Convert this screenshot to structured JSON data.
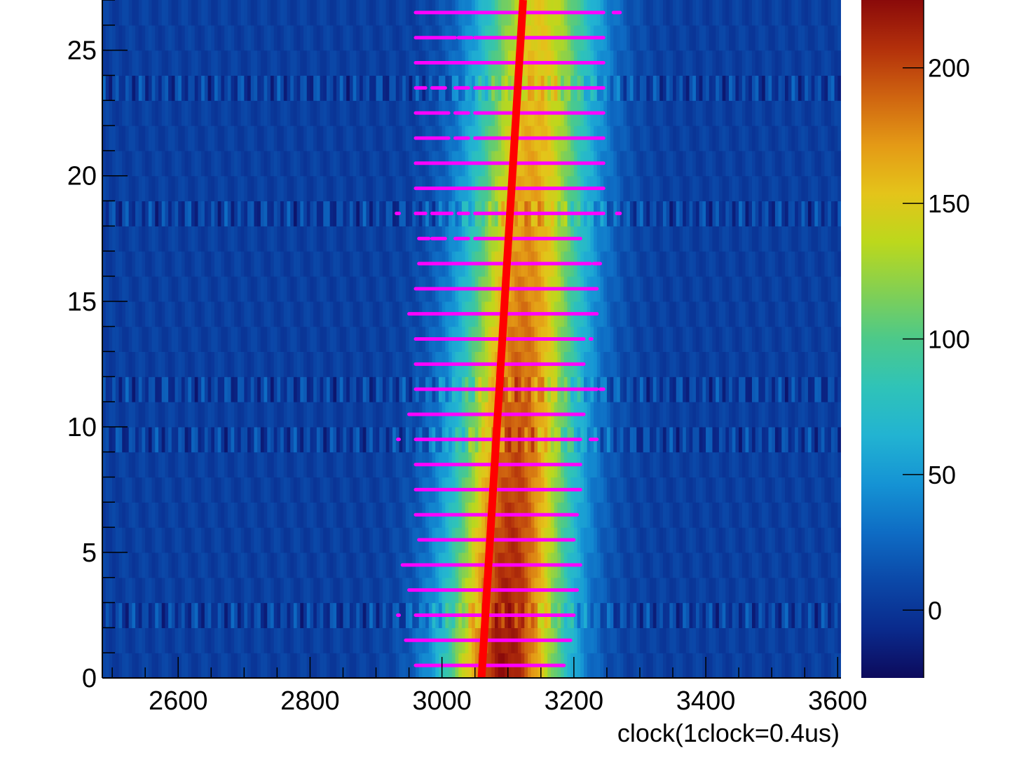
{
  "chart_data": {
    "type": "heatmap",
    "title": "",
    "xlabel": "clock(1clock=0.4us)",
    "ylabel": "",
    "xlim": [
      2485,
      3605
    ],
    "ylim": [
      0,
      27
    ],
    "x_ticks": [
      2600,
      2800,
      3000,
      3200,
      3400,
      3600
    ],
    "x_tick_labels": [
      "2600",
      "2800",
      "3000",
      "3200",
      "3400",
      "3600"
    ],
    "y_ticks": [
      0,
      5,
      10,
      15,
      20,
      25
    ],
    "y_tick_labels": [
      "0",
      "5",
      "10",
      "15",
      "20",
      "25"
    ],
    "colorbar": {
      "zlim": [
        -25,
        225
      ],
      "ticks": [
        0,
        50,
        100,
        150,
        200
      ],
      "tick_labels": [
        "0",
        "50",
        "100",
        "150",
        "200"
      ],
      "palette": [
        "#0d0a5c",
        "#0a2a8c",
        "#0b48a8",
        "#0e6cc4",
        "#1593d4",
        "#22b3d2",
        "#2fc3b8",
        "#4cc98a",
        "#84d051",
        "#bcd81c",
        "#e4c41a",
        "#e49a16",
        "#cf6410",
        "#b3300b",
        "#8a0a0a"
      ]
    },
    "heatmap": {
      "rows": 27,
      "row_height": 1,
      "peak_center_row0": 3095,
      "peak_center_row26": 3145,
      "peak_amplitude_row0": 215,
      "peak_amplitude_row26": 145,
      "peak_width": 80,
      "background_level": 5,
      "noisy_rows": [
        2,
        9,
        11,
        18,
        23
      ]
    },
    "series": [
      {
        "type": "line",
        "color": "#ff0000",
        "x": [
          3060,
          3123
        ],
        "y": [
          0,
          27
        ]
      }
    ],
    "hits": {
      "color": "#ff00ff",
      "rows": [
        {
          "y": 0.5,
          "segments": [
            [
              2960,
              3185
            ]
          ]
        },
        {
          "y": 1.5,
          "segments": [
            [
              2945,
              3195
            ]
          ]
        },
        {
          "y": 2.5,
          "segments": [
            [
              2933,
              2935
            ],
            [
              2960,
              3200
            ]
          ]
        },
        {
          "y": 3.5,
          "segments": [
            [
              2950,
              3205
            ]
          ]
        },
        {
          "y": 4.5,
          "segments": [
            [
              2940,
              3210
            ]
          ]
        },
        {
          "y": 5.5,
          "segments": [
            [
              2965,
              3200
            ]
          ]
        },
        {
          "y": 6.5,
          "segments": [
            [
              2960,
              3205
            ]
          ]
        },
        {
          "y": 7.5,
          "segments": [
            [
              2960,
              3210
            ]
          ]
        },
        {
          "y": 8.5,
          "segments": [
            [
              2960,
              3210
            ]
          ]
        },
        {
          "y": 9.5,
          "segments": [
            [
              2933,
              2935
            ],
            [
              2960,
              3210
            ],
            [
              3225,
              3235
            ]
          ]
        },
        {
          "y": 10.5,
          "segments": [
            [
              2950,
              3215
            ]
          ]
        },
        {
          "y": 11.5,
          "segments": [
            [
              2960,
              3235
            ],
            [
              3240,
              3245
            ]
          ]
        },
        {
          "y": 12.5,
          "segments": [
            [
              2960,
              3215
            ]
          ]
        },
        {
          "y": 13.5,
          "segments": [
            [
              2960,
              3215
            ],
            [
              3225,
              3227
            ]
          ]
        },
        {
          "y": 14.5,
          "segments": [
            [
              2950,
              3235
            ]
          ]
        },
        {
          "y": 15.5,
          "segments": [
            [
              2960,
              3235
            ]
          ]
        },
        {
          "y": 16.5,
          "segments": [
            [
              2965,
              3225
            ],
            [
              3230,
              3240
            ]
          ]
        },
        {
          "y": 17.5,
          "segments": [
            [
              2965,
              2980
            ],
            [
              2985,
              3005
            ],
            [
              3020,
              3040
            ],
            [
              3050,
              3210
            ]
          ]
        },
        {
          "y": 18.5,
          "segments": [
            [
              2931,
              2935
            ],
            [
              2960,
              2975
            ],
            [
              2985,
              3015
            ],
            [
              3025,
              3040
            ],
            [
              3050,
              3245
            ],
            [
              3265,
              3270
            ]
          ]
        },
        {
          "y": 19.5,
          "segments": [
            [
              2960,
              3245
            ]
          ]
        },
        {
          "y": 20.5,
          "segments": [
            [
              2960,
              3245
            ]
          ]
        },
        {
          "y": 21.5,
          "segments": [
            [
              2960,
              3010
            ],
            [
              3020,
              3040
            ],
            [
              3050,
              3245
            ]
          ]
        },
        {
          "y": 22.5,
          "segments": [
            [
              2960,
              3010
            ],
            [
              3020,
              3040
            ],
            [
              3050,
              3245
            ]
          ]
        },
        {
          "y": 23.5,
          "segments": [
            [
              2960,
              2975
            ],
            [
              2985,
              3005
            ],
            [
              3020,
              3040
            ],
            [
              3050,
              3245
            ]
          ]
        },
        {
          "y": 24.5,
          "segments": [
            [
              2960,
              3245
            ]
          ]
        },
        {
          "y": 25.5,
          "segments": [
            [
              2960,
              3020
            ],
            [
              3025,
              3045
            ],
            [
              3050,
              3245
            ]
          ]
        },
        {
          "y": 26.5,
          "segments": [
            [
              2960,
              3245
            ],
            [
              3260,
              3270
            ]
          ]
        }
      ]
    }
  }
}
